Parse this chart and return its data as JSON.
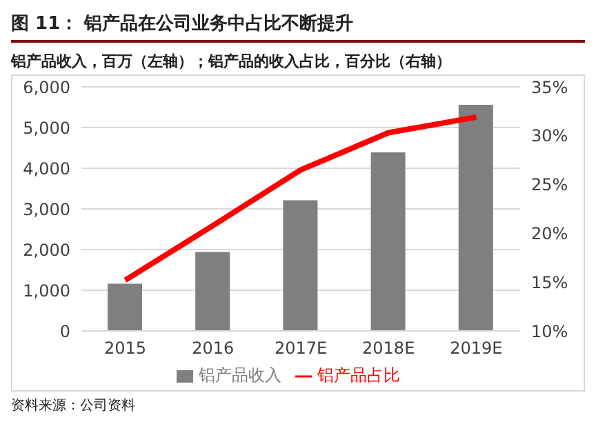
{
  "chart_data": {
    "type": "bar",
    "title": "图 11：  铝产品在公司业务中占比不断提升",
    "subtitle": "铝产品收入，百万（左轴）；铝产品的收入占比，百分比（右轴）",
    "categories": [
      "2015",
      "2016",
      "2017E",
      "2018E",
      "2019E"
    ],
    "series": [
      {
        "name": "铝产品收入",
        "color": "#7f7f7f",
        "values": [
          1160,
          1940,
          3210,
          4390,
          5560
        ]
      },
      {
        "name": "铝产品占比",
        "type": "line",
        "axis": "y2",
        "color": "#ff0000",
        "values": [
          15.2,
          20.8,
          26.5,
          30.3,
          31.9
        ]
      }
    ],
    "ylim": [
      0,
      6000
    ],
    "yticks": [
      0,
      {
        "value": 1000,
        "label": "1,000"
      },
      {
        "value": 2000,
        "label": "2,000"
      },
      {
        "value": 3000,
        "label": "3,000"
      },
      {
        "value": 4000,
        "label": "4,000"
      },
      {
        "value": 5000,
        "label": "5,000"
      },
      {
        "value": 6000,
        "label": "6,000"
      }
    ],
    "y2lim": [
      10,
      35
    ],
    "y2ticks": [
      {
        "value": 10,
        "label": "10%"
      },
      {
        "value": 15,
        "label": "15%"
      },
      {
        "value": 20,
        "label": "20%"
      },
      {
        "value": 25,
        "label": "25%"
      },
      {
        "value": 30,
        "label": "30%"
      },
      {
        "value": 35,
        "label": "35%"
      }
    ],
    "grid": "y",
    "legend": "bottom",
    "marker": "none",
    "line_style": "solid",
    "annotations": [
      "资料来源：公司资料"
    ]
  }
}
